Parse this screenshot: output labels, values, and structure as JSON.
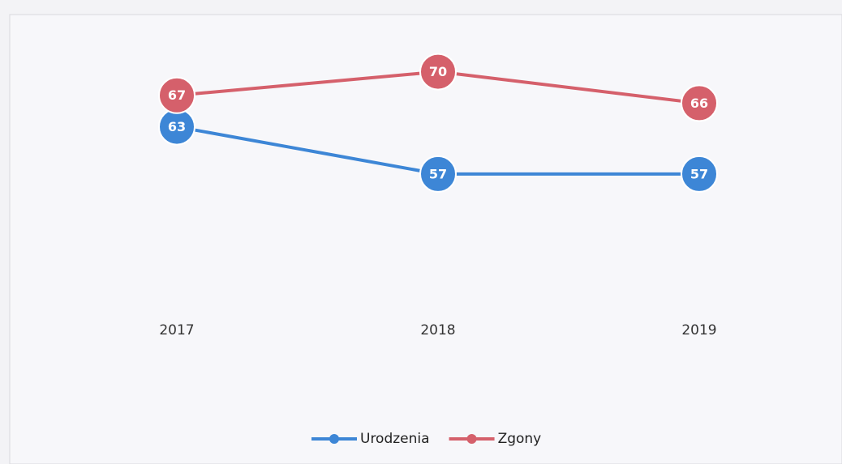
{
  "chart_data": {
    "type": "line",
    "categories": [
      "2017",
      "2018",
      "2019"
    ],
    "series": [
      {
        "name": "Urodzenia",
        "color": "#3d86d6",
        "values": [
          63,
          57,
          57
        ]
      },
      {
        "name": "Zgony",
        "color": "#d5606b",
        "values": [
          67,
          70,
          66
        ]
      }
    ],
    "ylim": [
      40,
      75
    ],
    "legend": "bottom"
  }
}
